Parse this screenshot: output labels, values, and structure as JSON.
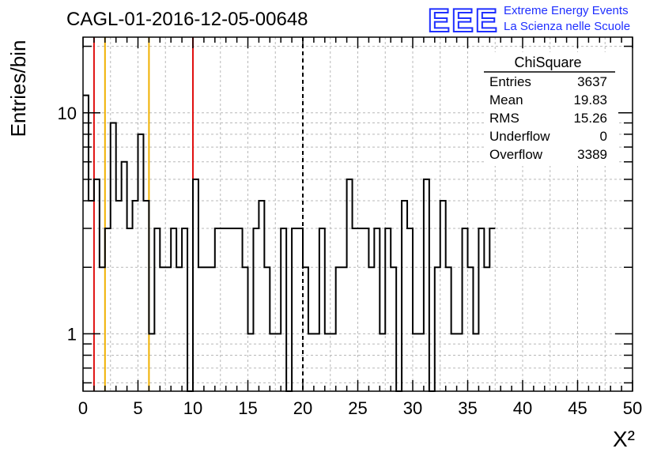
{
  "title": "CAGL-01-2016-12-05-00648",
  "logo": {
    "text": "EEE",
    "line1": "Extreme Energy Events",
    "line2": "La Scienza nelle Scuole",
    "color": "#1f2fff"
  },
  "stats": {
    "header": "ChiSquare",
    "rows": [
      {
        "label": "Entries",
        "value": "3637"
      },
      {
        "label": "Mean",
        "value": "19.83"
      },
      {
        "label": "RMS",
        "value": "15.26"
      },
      {
        "label": "Underflow",
        "value": "0"
      },
      {
        "label": "Overflow",
        "value": "3389"
      }
    ]
  },
  "chart_data": {
    "type": "histogram",
    "ylabel": "Entries/bin",
    "xlabel": "X²",
    "xlim": [
      0,
      50
    ],
    "ylim": [
      0.55,
      22
    ],
    "log_y": true,
    "grid": true,
    "bin_width": 0.5,
    "x_ticks": [
      "0",
      "5",
      "10",
      "15",
      "20",
      "25",
      "30",
      "35",
      "40",
      "45",
      "50"
    ],
    "y_ticks": [
      "1",
      "10"
    ],
    "values": [
      12,
      4,
      5,
      2,
      3,
      9,
      4,
      6,
      3,
      4,
      8,
      4,
      1,
      3,
      2,
      2,
      3,
      2,
      3,
      0,
      5,
      2,
      2,
      2,
      3,
      3,
      3,
      3,
      3,
      2,
      1,
      3,
      4,
      2,
      1,
      1,
      3,
      0,
      3,
      3,
      2,
      1,
      1,
      3,
      1,
      1,
      2,
      2,
      5,
      3,
      3,
      3,
      2,
      3,
      1,
      3,
      2,
      0,
      4,
      3,
      1,
      1,
      5,
      0,
      2,
      4,
      2,
      1,
      1,
      3,
      2,
      1,
      3,
      2,
      3
    ],
    "vlines": [
      {
        "x": 1,
        "color": "#e01010",
        "style": "solid"
      },
      {
        "x": 2,
        "color": "#f0b000",
        "style": "solid"
      },
      {
        "x": 6,
        "color": "#f0b000",
        "style": "solid"
      },
      {
        "x": 10,
        "color": "#e01010",
        "style": "solid"
      },
      {
        "x": 20,
        "color": "#000000",
        "style": "dashed"
      }
    ]
  }
}
